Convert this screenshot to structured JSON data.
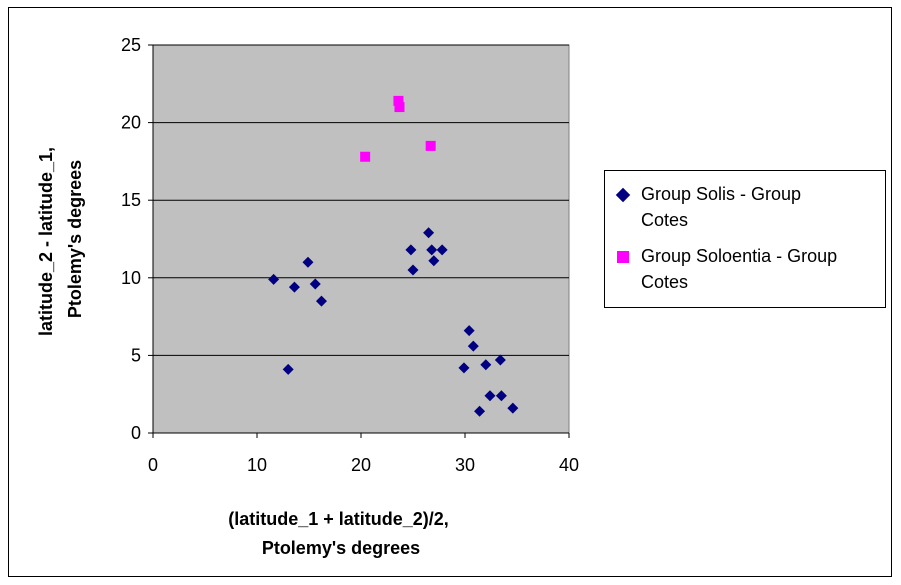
{
  "chart_data": {
    "type": "scatter",
    "xlabel": [
      "(latitude_1 + latitude_2)/2,",
      "Ptolemy's degrees"
    ],
    "ylabel": [
      "latitude_2 - latitude_1,",
      "Ptolemy's degrees"
    ],
    "xlim": [
      0,
      40
    ],
    "ylim": [
      0,
      25
    ],
    "xticks": [
      0,
      10,
      20,
      30,
      40
    ],
    "yticks": [
      0,
      5,
      10,
      15,
      20,
      25
    ],
    "grid": "horizontal",
    "legend_position": "right",
    "plot_background": "#c0c0c0",
    "series": [
      {
        "name": "Group Solis - Group Cotes",
        "marker": "diamond",
        "color": "#000080",
        "points": [
          [
            11.6,
            9.9
          ],
          [
            13.6,
            9.4
          ],
          [
            14.9,
            11.0
          ],
          [
            15.6,
            9.6
          ],
          [
            16.2,
            8.5
          ],
          [
            13.0,
            4.1
          ],
          [
            24.8,
            11.8
          ],
          [
            25.0,
            10.5
          ],
          [
            26.5,
            12.9
          ],
          [
            26.8,
            11.8
          ],
          [
            27.0,
            11.1
          ],
          [
            27.8,
            11.8
          ],
          [
            30.4,
            6.6
          ],
          [
            30.8,
            5.6
          ],
          [
            29.9,
            4.2
          ],
          [
            32.0,
            4.4
          ],
          [
            33.4,
            4.7
          ],
          [
            32.4,
            2.4
          ],
          [
            33.5,
            2.4
          ],
          [
            31.4,
            1.4
          ],
          [
            34.6,
            1.6
          ]
        ]
      },
      {
        "name": "Group Soloentia - Group Cotes",
        "marker": "square",
        "color": "#ff00ff",
        "points": [
          [
            20.4,
            17.8
          ],
          [
            23.6,
            21.4
          ],
          [
            23.7,
            21.0
          ],
          [
            26.7,
            18.5
          ]
        ]
      }
    ],
    "legend_entries": [
      [
        "Group Solis - Group",
        "Cotes"
      ],
      [
        "Group Soloentia - Group",
        "Cotes"
      ]
    ]
  }
}
